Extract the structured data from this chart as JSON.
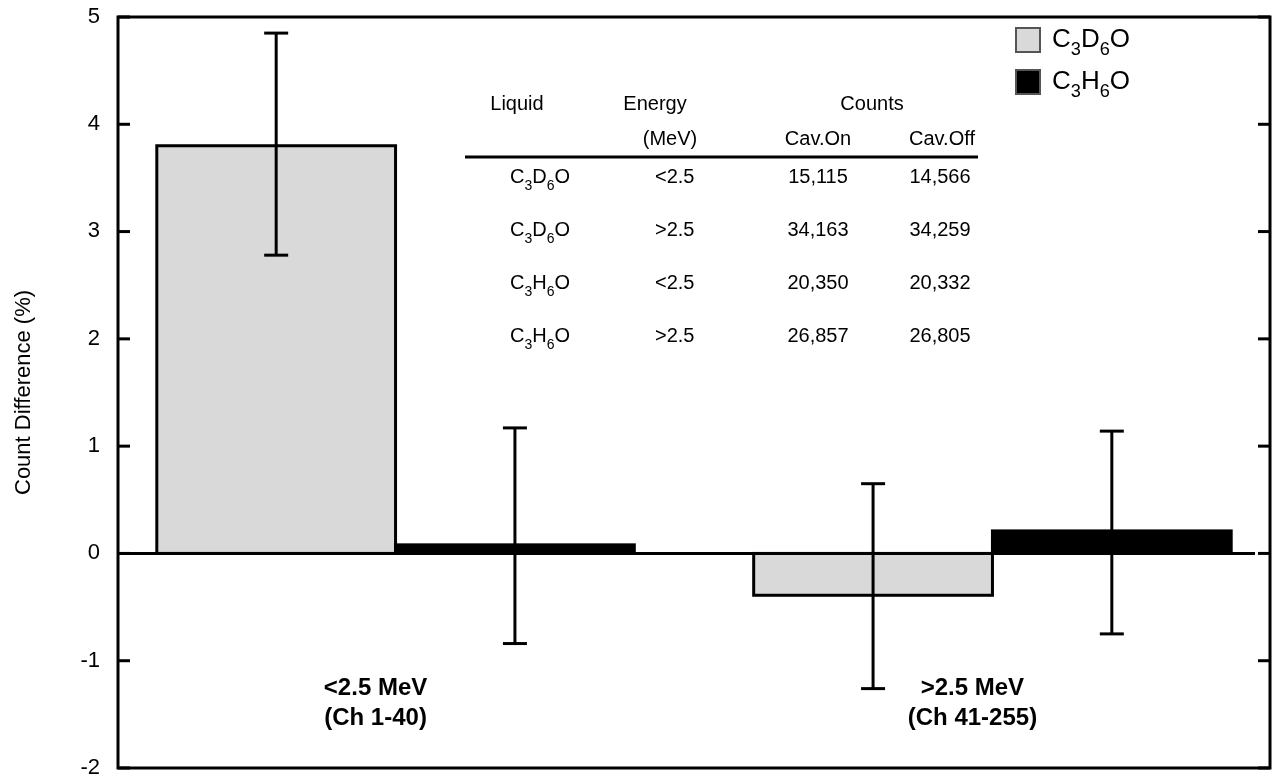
{
  "chart_data": {
    "type": "bar",
    "ylabel": "Count Difference (%)",
    "categories": [
      "<2.5 MeV\n(Ch 1-40)",
      ">2.5 MeV\n(Ch 41-255)"
    ],
    "series": [
      {
        "name": "C$_{3}$D$_{6}$O",
        "color": "#d9d9d9",
        "values": [
          3.8,
          -0.39
        ],
        "errors": [
          [
            2.78,
            4.85
          ],
          [
            -1.26,
            0.65
          ]
        ]
      },
      {
        "name": "C$_{3}$H$_{6}$O",
        "color": "#000000",
        "values": [
          0.08,
          0.21
        ],
        "errors": [
          [
            -0.84,
            1.17
          ],
          [
            -0.75,
            1.14
          ]
        ]
      }
    ],
    "ylim": [
      -2,
      5
    ],
    "yticks": [
      -2,
      -1,
      0,
      1,
      2,
      3,
      4,
      5
    ],
    "legend": "top right",
    "annotations": [
      "Liquid",
      "Energy",
      "(MeV)",
      "Counts",
      "Cav.On",
      "Cav.Off",
      "C$_{3}$D$_{6}$O",
      "<2.5",
      "15,115",
      "14,566",
      "C$_{3}$D$_{6}$O",
      ">2.5",
      "34,163",
      "34,259",
      "C$_{3}$H$_{6}$O",
      "<2.5",
      "20,350",
      "20,332",
      "C$_{3}$H$_{6}$O",
      ">2.5",
      "26,857",
      "26,805"
    ]
  }
}
